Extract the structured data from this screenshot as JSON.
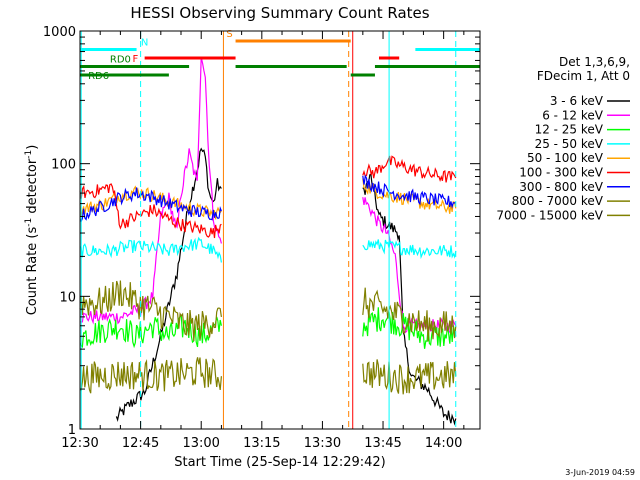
{
  "chart_data": {
    "type": "line",
    "title": "HESSI Observing Summary Count Rates",
    "xlabel": "Start Time (25-Sep-14 12:29:42)",
    "ylabel_parts": [
      "Count Rate (s",
      "-1",
      " detector",
      "-1",
      ")"
    ],
    "ylabel": "Count Rate (s-1 detector-1)",
    "y_scale": "log",
    "ylim": [
      1,
      1000
    ],
    "x_minutes_range": [
      0,
      99
    ],
    "x_ticks": [
      {
        "label": "12:30",
        "minutes": 0
      },
      {
        "label": "12:45",
        "minutes": 15
      },
      {
        "label": "13:00",
        "minutes": 30
      },
      {
        "label": "13:15",
        "minutes": 45
      },
      {
        "label": "13:30",
        "minutes": 60
      },
      {
        "label": "13:45",
        "minutes": 75
      },
      {
        "label": "14:00",
        "minutes": 90
      }
    ],
    "y_major_ticks": [
      {
        "label": "1",
        "value": 1
      },
      {
        "label": "10",
        "value": 10
      },
      {
        "label": "100",
        "value": 100
      },
      {
        "label": "1000",
        "value": 1000
      }
    ],
    "legend_header": [
      "Det 1,3,6,9,",
      "FDecim 1, Att 0"
    ],
    "legend_position": "right",
    "series": [
      {
        "name": "3 - 6 keV",
        "color": "#000000",
        "segments": [
          [
            [
              9,
              1.2
            ],
            [
              12,
              1.5
            ],
            [
              16,
              1.9
            ],
            [
              20,
              5
            ],
            [
              24,
              15
            ],
            [
              27,
              50
            ],
            [
              29,
              90
            ],
            [
              30,
              130
            ],
            [
              31,
              110
            ],
            [
              32,
              60
            ],
            [
              33,
              50
            ],
            [
              34,
              70
            ],
            [
              35,
              65
            ]
          ],
          [
            [
              70,
              60
            ],
            [
              72,
              80
            ],
            [
              74,
              40
            ],
            [
              76,
              35
            ],
            [
              79,
              30
            ],
            [
              80,
              5
            ],
            [
              82,
              2.5
            ],
            [
              86,
              2
            ],
            [
              90,
              1.3
            ],
            [
              93,
              1.2
            ]
          ]
        ]
      },
      {
        "name": "6 - 12 keV",
        "color": "#ff00ff",
        "segments": [
          [
            [
              0,
              7
            ],
            [
              10,
              7
            ],
            [
              15,
              8
            ],
            [
              18,
              10
            ],
            [
              20,
              40
            ],
            [
              22,
              55
            ],
            [
              24,
              30
            ],
            [
              25,
              60
            ],
            [
              27,
              120
            ],
            [
              29,
              70
            ],
            [
              30,
              700
            ],
            [
              31,
              450
            ],
            [
              32,
              100
            ],
            [
              33,
              40
            ],
            [
              34,
              30
            ],
            [
              35,
              25
            ]
          ],
          [
            [
              70,
              55
            ],
            [
              72,
              45
            ],
            [
              74,
              35
            ],
            [
              76,
              30
            ],
            [
              78,
              20
            ],
            [
              80,
              6
            ],
            [
              85,
              6
            ],
            [
              93,
              6
            ]
          ]
        ]
      },
      {
        "name": "12 - 25 keV",
        "color": "#00ff00",
        "segments": [
          [
            [
              0,
              5
            ],
            [
              10,
              6
            ],
            [
              14,
              5
            ],
            [
              18,
              6
            ],
            [
              22,
              5
            ],
            [
              26,
              6
            ],
            [
              30,
              5
            ],
            [
              35,
              6
            ]
          ],
          [
            [
              70,
              6
            ],
            [
              75,
              7
            ],
            [
              80,
              6
            ],
            [
              85,
              5
            ],
            [
              93,
              5
            ]
          ]
        ]
      },
      {
        "name": "25 - 50 keV",
        "color": "#00ffff",
        "segments": [
          [
            [
              0,
              22
            ],
            [
              8,
              22
            ],
            [
              10,
              23
            ],
            [
              14,
              24
            ],
            [
              18,
              23
            ],
            [
              22,
              22
            ],
            [
              26,
              24
            ],
            [
              30,
              25
            ],
            [
              33,
              22
            ],
            [
              35,
              18
            ]
          ],
          [
            [
              70,
              25
            ],
            [
              75,
              24
            ],
            [
              80,
              23
            ],
            [
              85,
              22
            ],
            [
              93,
              22
            ]
          ]
        ]
      },
      {
        "name": "50 - 100 keV",
        "color": "#ffa500",
        "segments": [
          [
            [
              0,
              45
            ],
            [
              6,
              50
            ],
            [
              10,
              58
            ],
            [
              14,
              62
            ],
            [
              18,
              58
            ],
            [
              22,
              52
            ],
            [
              26,
              47
            ],
            [
              30,
              44
            ],
            [
              33,
              42
            ],
            [
              35,
              44
            ]
          ],
          [
            [
              70,
              70
            ],
            [
              73,
              62
            ],
            [
              76,
              58
            ],
            [
              80,
              55
            ],
            [
              85,
              50
            ],
            [
              90,
              47
            ],
            [
              93,
              46
            ]
          ]
        ]
      },
      {
        "name": "100 - 300 keV",
        "color": "#ff0000",
        "segments": [
          [
            [
              0,
              60
            ],
            [
              4,
              62
            ],
            [
              8,
              68
            ],
            [
              10,
              35
            ],
            [
              14,
              40
            ],
            [
              18,
              45
            ],
            [
              22,
              38
            ],
            [
              26,
              34
            ],
            [
              30,
              32
            ],
            [
              33,
              30
            ],
            [
              35,
              35
            ]
          ],
          [
            [
              70,
              90
            ],
            [
              73,
              85
            ],
            [
              76,
              105
            ],
            [
              80,
              95
            ],
            [
              85,
              85
            ],
            [
              90,
              80
            ],
            [
              93,
              78
            ]
          ]
        ]
      },
      {
        "name": "300 - 800 keV",
        "color": "#0000ff",
        "segments": [
          [
            [
              0,
              40
            ],
            [
              6,
              48
            ],
            [
              10,
              56
            ],
            [
              14,
              60
            ],
            [
              18,
              56
            ],
            [
              22,
              50
            ],
            [
              26,
              45
            ],
            [
              30,
              43
            ],
            [
              33,
              42
            ],
            [
              35,
              44
            ]
          ],
          [
            [
              70,
              75
            ],
            [
              73,
              68
            ],
            [
              76,
              62
            ],
            [
              80,
              58
            ],
            [
              85,
              55
            ],
            [
              90,
              52
            ],
            [
              93,
              51
            ]
          ]
        ]
      },
      {
        "name": "800 - 7000 keV",
        "color": "#808000",
        "segments": [
          [
            [
              0,
              9
            ],
            [
              6,
              9
            ],
            [
              10,
              11
            ],
            [
              14,
              9
            ],
            [
              18,
              8
            ],
            [
              22,
              7
            ],
            [
              26,
              6
            ],
            [
              30,
              6
            ],
            [
              35,
              7
            ]
          ],
          [
            [
              70,
              9
            ],
            [
              75,
              8
            ],
            [
              80,
              7
            ],
            [
              85,
              6
            ],
            [
              93,
              6
            ]
          ]
        ]
      },
      {
        "name": "7000 - 15000 keV",
        "color": "#808000",
        "segments": [
          [
            [
              0,
              2.4
            ],
            [
              10,
              2.6
            ],
            [
              20,
              2.5
            ],
            [
              30,
              2.7
            ],
            [
              35,
              2.5
            ]
          ],
          [
            [
              70,
              2.7
            ],
            [
              80,
              2.4
            ],
            [
              90,
              2.5
            ],
            [
              93,
              2.5
            ]
          ]
        ]
      }
    ],
    "flag_bars": [
      {
        "label": "N",
        "color": "#00ffff",
        "level": 1,
        "segments": [
          [
            0,
            14
          ]
        ],
        "label_at": 16,
        "label_pos": "above"
      },
      {
        "label": "N",
        "color": "#00ffff",
        "level": 1,
        "segments": [
          [
            83,
            99
          ]
        ]
      },
      {
        "label": "F",
        "color": "#ff0000",
        "level": 2,
        "segments": [
          [
            16,
            38.5
          ]
        ],
        "label_at": 13,
        "label_pos": "left"
      },
      {
        "label": "F",
        "color": "#ff0000",
        "level": 2,
        "segments": [
          [
            74,
            79
          ]
        ]
      },
      {
        "label": "S",
        "color": "#ff8000",
        "level": 0,
        "segments": [
          [
            38.5,
            67
          ]
        ],
        "label_at": 37,
        "label_pos": "above"
      },
      {
        "label": "RD0",
        "color": "#008000",
        "level": 3,
        "segments": [
          [
            0,
            27
          ],
          [
            38.5,
            66
          ],
          [
            73,
            99
          ]
        ],
        "label_at": 10,
        "label_pos": "above"
      },
      {
        "label": "RD0",
        "color": "#008000",
        "level": 3,
        "segments": [
          [
            13,
            17
          ]
        ]
      },
      {
        "label": "RD6",
        "color": "#008000",
        "level": 4,
        "segments": [
          [
            0,
            22
          ],
          [
            67,
            73
          ]
        ],
        "label_at": 2,
        "label_pos": "left"
      }
    ],
    "vlines": [
      {
        "minutes": 0.3,
        "color": "#00ffff",
        "style": "solid"
      },
      {
        "minutes": 15,
        "color": "#00ffff",
        "style": "dashed"
      },
      {
        "minutes": 35.5,
        "color": "#ff8000",
        "style": "solid"
      },
      {
        "minutes": 66.5,
        "color": "#ff8000",
        "style": "dashed"
      },
      {
        "minutes": 67.5,
        "color": "#ff0000",
        "style": "solid"
      },
      {
        "minutes": 76.5,
        "color": "#00ffff",
        "style": "solid"
      },
      {
        "minutes": 93,
        "color": "#00ffff",
        "style": "dashed"
      }
    ],
    "footer_date": "3-Jun-2019 04:59"
  }
}
